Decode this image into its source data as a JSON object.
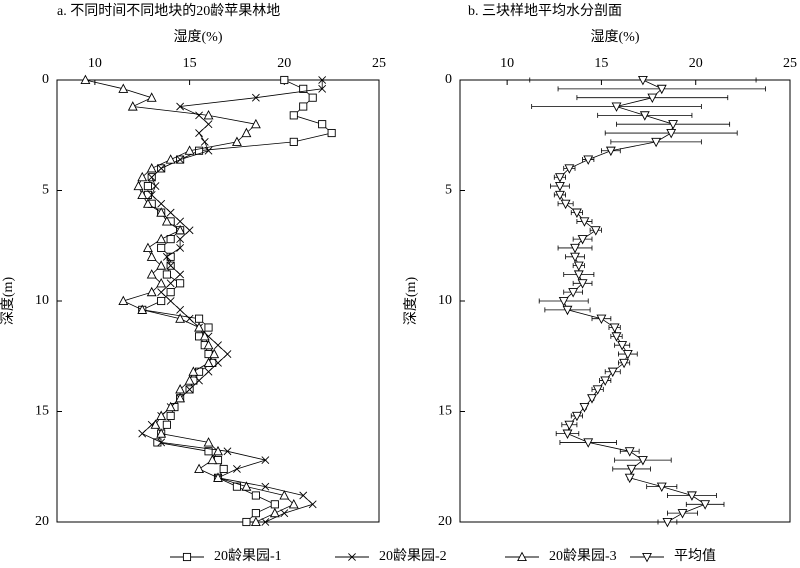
{
  "chart_data": [
    {
      "type": "line",
      "title": "a. 不同时间不同地块的20龄苹果林地",
      "xlabel": "湿度(%)",
      "ylabel": "深度(m)",
      "xlim": [
        8,
        25
      ],
      "xticks": [
        10,
        15,
        20,
        25
      ],
      "ylim": [
        0,
        20
      ],
      "yticks": [
        0,
        5,
        10,
        15,
        20
      ],
      "y": [
        0,
        0.4,
        0.8,
        1.2,
        1.6,
        2.0,
        2.4,
        2.8,
        3.2,
        3.6,
        4.0,
        4.4,
        4.8,
        5.2,
        5.6,
        6.0,
        6.4,
        6.8,
        7.2,
        7.6,
        8.0,
        8.4,
        8.8,
        9.2,
        9.6,
        10.0,
        10.4,
        10.8,
        11.2,
        11.6,
        12.0,
        12.4,
        12.8,
        13.2,
        13.6,
        14.0,
        14.4,
        14.8,
        15.2,
        15.6,
        16.0,
        16.4,
        16.8,
        17.2,
        17.6,
        18.0,
        18.4,
        18.8,
        19.2,
        19.6,
        20.0
      ],
      "series": [
        {
          "name": "20龄果园-1",
          "color": "#000000",
          "marker": "square",
          "values": [
            20,
            21,
            21.5,
            21,
            20.5,
            22,
            22.5,
            20.5,
            15.5,
            14.5,
            13.5,
            13,
            12.8,
            12.8,
            13,
            13.5,
            14,
            14.5,
            14,
            13.5,
            14,
            14,
            13.8,
            14.5,
            14,
            13.5,
            12.5,
            15.5,
            16,
            15.5,
            15.8,
            16,
            16.2,
            15.5,
            15.2,
            15,
            14.5,
            14.2,
            14,
            13.8,
            13.5,
            13.3,
            16,
            16.5,
            16.8,
            16.5,
            17.5,
            18.5,
            19.5,
            18.5,
            18
          ]
        },
        {
          "name": "20龄果园-2",
          "color": "#000000",
          "marker": "cross",
          "values": [
            22,
            22,
            18.5,
            14.5,
            15.5,
            16,
            15.5,
            15.8,
            16,
            14.5,
            13.5,
            13,
            13.2,
            13,
            13.5,
            14,
            14.5,
            15,
            14.5,
            14.5,
            13.8,
            14,
            14.5,
            14,
            13.5,
            14,
            14.5,
            15,
            15.5,
            16,
            16.5,
            17,
            16.5,
            16,
            15.5,
            15,
            14.5,
            14,
            13.5,
            13,
            12.5,
            13.5,
            17,
            19,
            17.5,
            16.5,
            19,
            21,
            21.5,
            20,
            19
          ]
        },
        {
          "name": "20龄果园-3",
          "color": "#000000",
          "marker": "triangle",
          "values": [
            9.5,
            11.5,
            13,
            12,
            16,
            18.5,
            18,
            17.5,
            15,
            14,
            13,
            12.5,
            12.3,
            12.5,
            12.8,
            13.5,
            13.8,
            14.5,
            13.5,
            12.8,
            13,
            13.5,
            13,
            13.5,
            13,
            11.5,
            12.5,
            14.5,
            15.5,
            15.8,
            16,
            16.3,
            16,
            15.2,
            15,
            14.5,
            14.5,
            14,
            13.5,
            13.2,
            13.5,
            16,
            16.5,
            16.2,
            15.5,
            16.5,
            18,
            20,
            20.5,
            19.5,
            18.5
          ]
        }
      ]
    },
    {
      "type": "errorbar",
      "title": "b. 三块样地平均水分剖面",
      "xlabel": "湿度(%)",
      "ylabel": "深度(m)",
      "xlim": [
        7.5,
        25
      ],
      "xticks": [
        10,
        15,
        20,
        25
      ],
      "ylim": [
        0,
        20
      ],
      "yticks": [
        0,
        5,
        10,
        15,
        20
      ],
      "y": [
        0,
        0.4,
        0.8,
        1.2,
        1.6,
        2.0,
        2.4,
        2.8,
        3.2,
        3.6,
        4.0,
        4.4,
        4.8,
        5.2,
        5.6,
        6.0,
        6.4,
        6.8,
        7.2,
        7.6,
        8.0,
        8.4,
        8.8,
        9.2,
        9.6,
        10.0,
        10.4,
        10.8,
        11.2,
        11.6,
        12.0,
        12.4,
        12.8,
        13.2,
        13.6,
        14.0,
        14.4,
        14.8,
        15.2,
        15.6,
        16.0,
        16.4,
        16.8,
        17.2,
        17.6,
        18.0,
        18.4,
        18.8,
        19.2,
        19.6,
        20.0
      ],
      "series": [
        {
          "name": "平均值",
          "color": "#000000",
          "marker": "triangle-down",
          "values": [
            17.2,
            18.2,
            17.7,
            15.8,
            17.3,
            18.8,
            18.7,
            17.9,
            15.5,
            14.3,
            13.3,
            12.8,
            12.8,
            12.8,
            13.1,
            13.7,
            14.1,
            14.7,
            14.0,
            13.6,
            13.6,
            13.8,
            13.8,
            14.0,
            13.5,
            13.0,
            13.2,
            15.0,
            15.7,
            15.8,
            16.1,
            16.4,
            16.2,
            15.6,
            15.2,
            14.8,
            14.5,
            14.1,
            13.7,
            13.3,
            13.2,
            14.3,
            16.5,
            17.2,
            16.6,
            16.5,
            18.2,
            19.8,
            20.5,
            19.3,
            18.5
          ],
          "errors": [
            6,
            5.5,
            4,
            4.5,
            2.5,
            3,
            3.5,
            2.4,
            0.5,
            0.3,
            0.3,
            0.3,
            0.5,
            0.3,
            0.4,
            0.3,
            0.4,
            0.3,
            0.5,
            0.9,
            0.5,
            0.3,
            0.8,
            0.5,
            0.5,
            1.3,
            1.2,
            0.5,
            0.3,
            0.3,
            0.4,
            0.5,
            0.3,
            0.4,
            0.3,
            0.3,
            0.1,
            0.1,
            0.3,
            0.4,
            0.6,
            1.5,
            0.5,
            1.5,
            1,
            0.1,
            0.8,
            1.3,
            1,
            0.8,
            0.5
          ]
        }
      ]
    }
  ]
}
